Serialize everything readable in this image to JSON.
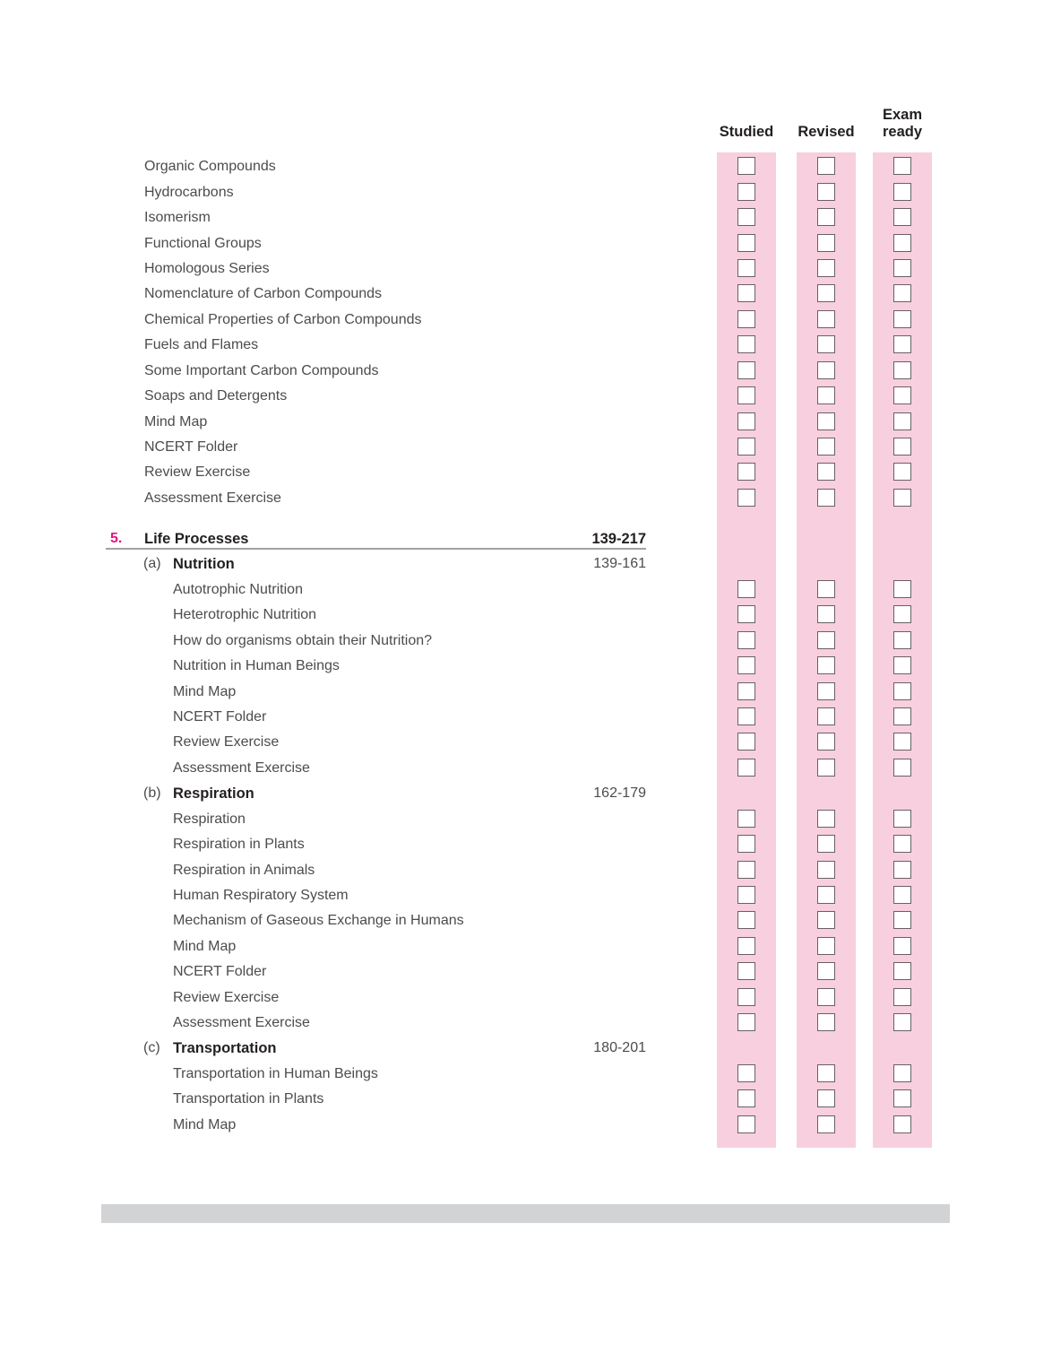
{
  "header": {
    "columns": [
      "Studied",
      "Revised",
      "Exam ready"
    ]
  },
  "colors": {
    "band_pink": "#f8cfde",
    "checkbox_border": "#6b5f66",
    "accent_pink": "#e0147f",
    "heading_ink": "#231f20",
    "body_ink": "#4c4c4e",
    "rule_gray": "#a0a2a5",
    "bar_gray": "#d2d3d5"
  },
  "toc": {
    "previous_chapter_items": [
      "Organic Compounds",
      "Hydrocarbons",
      "Isomerism",
      "Functional Groups",
      "Homologous Series",
      "Nomenclature of Carbon Compounds",
      "Chemical Properties of Carbon Compounds",
      "Fuels and Flames",
      "Some Important Carbon Compounds",
      "Soaps and Detergents",
      "Mind Map",
      "NCERT Folder",
      "Review Exercise",
      "Assessment Exercise"
    ],
    "chapter": {
      "number": "5.",
      "title": "Life Processes",
      "pages": "139-217",
      "sections": [
        {
          "label": "(a)",
          "title": "Nutrition",
          "pages": "139-161",
          "items": [
            "Autotrophic Nutrition",
            "Heterotrophic Nutrition",
            "How do organisms obtain their Nutrition?",
            "Nutrition in Human Beings",
            "Mind Map",
            "NCERT Folder",
            "Review Exercise",
            "Assessment Exercise"
          ]
        },
        {
          "label": "(b)",
          "title": "Respiration",
          "pages": "162-179",
          "items": [
            "Respiration",
            "Respiration in Plants",
            "Respiration in Animals",
            "Human Respiratory System",
            "Mechanism of Gaseous Exchange in Humans",
            "Mind Map",
            "NCERT Folder",
            "Review Exercise",
            "Assessment Exercise"
          ]
        },
        {
          "label": "(c)",
          "title": "Transportation",
          "pages": "180-201",
          "items": [
            "Transportation in Human Beings",
            "Transportation in Plants",
            "Mind Map"
          ]
        }
      ]
    },
    "checkbox_state": "unchecked"
  }
}
